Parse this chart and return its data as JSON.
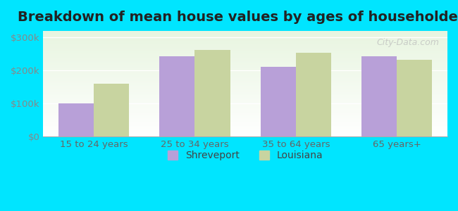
{
  "title": "Breakdown of mean house values by ages of householders",
  "categories": [
    "15 to 24 years",
    "25 to 34 years",
    "35 to 64 years",
    "65 years+"
  ],
  "shreveport_values": [
    100000,
    243000,
    210000,
    243000
  ],
  "louisiana_values": [
    160000,
    263000,
    253000,
    233000
  ],
  "shreveport_color": "#b8a0d8",
  "louisiana_color": "#c8d4a0",
  "background_color": "#00e5ff",
  "plot_bg_gradient_top": "#e8f5e0",
  "plot_bg_gradient_bottom": "#ffffff",
  "ylabel_ticks": [
    0,
    100000,
    200000,
    300000
  ],
  "ylabel_labels": [
    "$0",
    "$100k",
    "$200k",
    "$300k"
  ],
  "ylim": [
    0,
    320000
  ],
  "bar_width": 0.35,
  "title_fontsize": 14,
  "legend_labels": [
    "Shreveport",
    "Louisiana"
  ],
  "watermark": "City-Data.com"
}
